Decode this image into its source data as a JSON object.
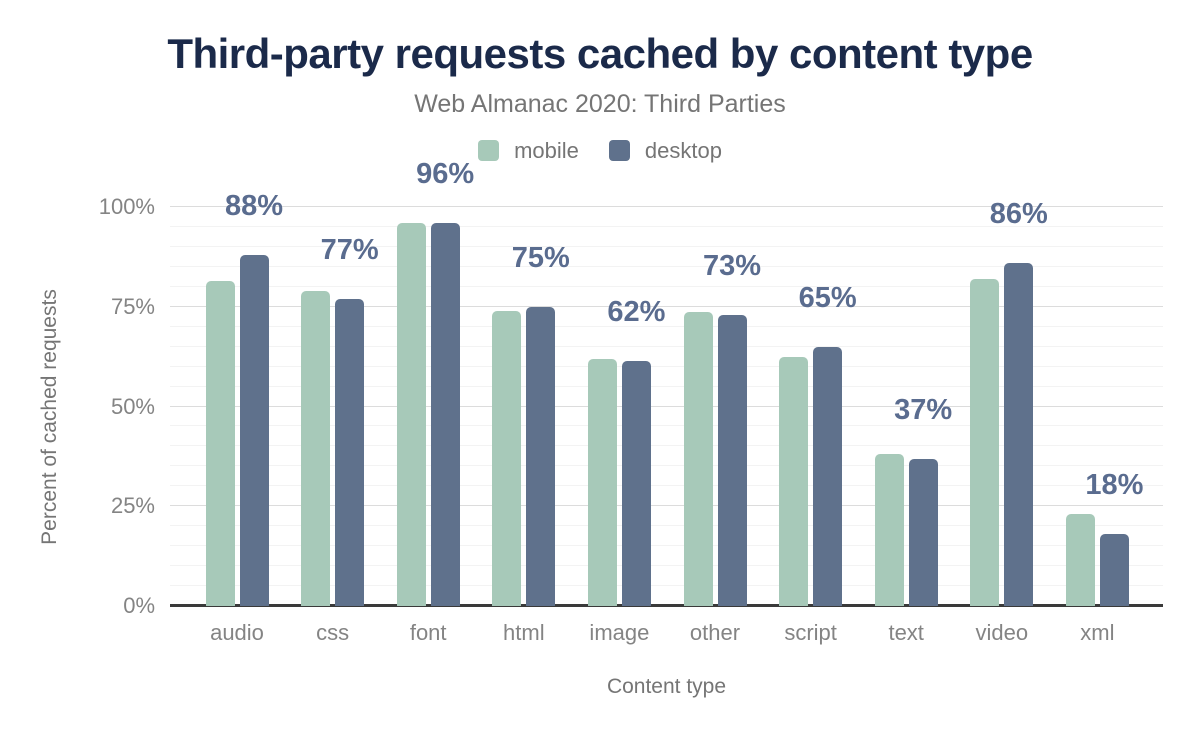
{
  "chart_data": {
    "type": "bar",
    "title": "Third-party requests cached by content type",
    "subtitle": "Web Almanac 2020: Third Parties",
    "xlabel": "Content type",
    "ylabel": "Percent of cached requests",
    "categories": [
      "audio",
      "css",
      "font",
      "html",
      "image",
      "other",
      "script",
      "text",
      "video",
      "xml"
    ],
    "series": [
      {
        "name": "mobile",
        "color": "#a7c9b9",
        "values": [
          81.5,
          79,
          96,
          74,
          62,
          73.8,
          62.5,
          38,
          82,
          23
        ]
      },
      {
        "name": "desktop",
        "color": "#5f718c",
        "values": [
          88,
          77,
          96,
          75,
          61.5,
          73,
          65,
          36.8,
          86,
          18
        ]
      }
    ],
    "data_labels": [
      "88%",
      "77%",
      "96%",
      "75%",
      "62%",
      "73%",
      "65%",
      "37%",
      "86%",
      "18%"
    ],
    "yticks": [
      0,
      25,
      50,
      75,
      100
    ],
    "ytick_labels": [
      "0%",
      "25%",
      "50%",
      "75%",
      "100%"
    ],
    "ylim": [
      0,
      100
    ],
    "grid": {
      "minor_step": 5,
      "major_step": 25,
      "grid_on": true
    },
    "legend_position": "top"
  },
  "style": {
    "title_color": "#1b2a4a",
    "subtitle_color": "#757575",
    "axis_text_color": "#848484",
    "data_label_color": "#5a6c8f",
    "axis_line_color": "#3a3a3a",
    "minor_grid_color": "#f3f3f3",
    "major_grid_color": "#dcdcdc"
  }
}
